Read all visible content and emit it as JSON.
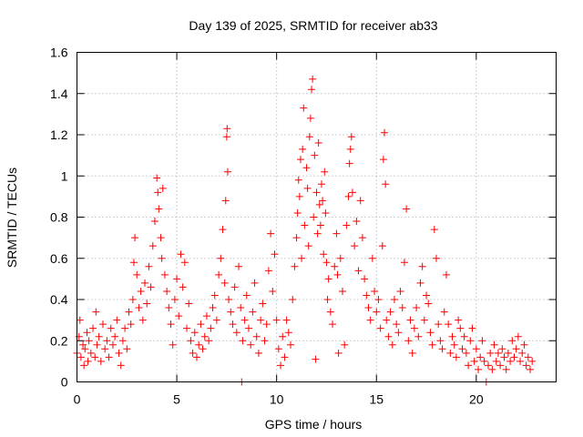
{
  "chart_data": {
    "type": "scatter",
    "title": "Day 139 of 2025, SRMTID for receiver ab33",
    "xlabel": "GPS time / hours",
    "ylabel": "SRMTID / TECUs",
    "xlim": [
      0,
      24
    ],
    "ylim": [
      0,
      1.6
    ],
    "xticks": [
      0,
      5,
      10,
      15,
      20
    ],
    "xtick_labels": [
      "0",
      "5",
      "10",
      "15",
      "20"
    ],
    "yticks": [
      0,
      0.2,
      0.4,
      0.6,
      0.8,
      1.0,
      1.2,
      1.4,
      1.6
    ],
    "ytick_labels": [
      "0",
      "0.2",
      "0.4",
      "0.6",
      "0.8",
      "1",
      "1.2",
      "1.4",
      "1.6"
    ],
    "grid": true,
    "marker": "+",
    "color": "#ff0000",
    "series": [
      {
        "name": "SRMTID",
        "points": [
          [
            0.0,
            0.14
          ],
          [
            0.1,
            0.22
          ],
          [
            0.15,
            0.3
          ],
          [
            0.2,
            0.12
          ],
          [
            0.3,
            0.18
          ],
          [
            0.35,
            0.08
          ],
          [
            0.4,
            0.16
          ],
          [
            0.5,
            0.24
          ],
          [
            0.55,
            0.1
          ],
          [
            0.6,
            0.2
          ],
          [
            0.7,
            0.14
          ],
          [
            0.8,
            0.26
          ],
          [
            0.9,
            0.12
          ],
          [
            0.95,
            0.34
          ],
          [
            1.0,
            0.18
          ],
          [
            1.1,
            0.22
          ],
          [
            1.2,
            0.1
          ],
          [
            1.3,
            0.28
          ],
          [
            1.4,
            0.16
          ],
          [
            1.5,
            0.2
          ],
          [
            1.6,
            0.12
          ],
          [
            1.7,
            0.26
          ],
          [
            1.8,
            0.18
          ],
          [
            1.9,
            0.22
          ],
          [
            2.0,
            0.3
          ],
          [
            2.1,
            0.14
          ],
          [
            2.2,
            0.08
          ],
          [
            2.3,
            0.2
          ],
          [
            2.4,
            0.26
          ],
          [
            2.5,
            0.16
          ],
          [
            2.6,
            0.34
          ],
          [
            2.7,
            0.28
          ],
          [
            2.8,
            0.4
          ],
          [
            2.85,
            0.58
          ],
          [
            2.9,
            0.7
          ],
          [
            3.0,
            0.52
          ],
          [
            3.1,
            0.36
          ],
          [
            3.2,
            0.44
          ],
          [
            3.3,
            0.3
          ],
          [
            3.4,
            0.48
          ],
          [
            3.5,
            0.38
          ],
          [
            3.6,
            0.56
          ],
          [
            3.7,
            0.46
          ],
          [
            3.8,
            0.66
          ],
          [
            3.9,
            0.78
          ],
          [
            4.0,
            0.99
          ],
          [
            4.05,
            0.92
          ],
          [
            4.1,
            0.84
          ],
          [
            4.2,
            0.7
          ],
          [
            4.25,
            0.6
          ],
          [
            4.3,
            0.94
          ],
          [
            4.4,
            0.52
          ],
          [
            4.5,
            0.44
          ],
          [
            4.6,
            0.36
          ],
          [
            4.7,
            0.28
          ],
          [
            4.8,
            0.18
          ],
          [
            4.9,
            0.4
          ],
          [
            5.0,
            0.5
          ],
          [
            5.1,
            0.32
          ],
          [
            5.2,
            0.62
          ],
          [
            5.3,
            0.46
          ],
          [
            5.4,
            0.58
          ],
          [
            5.5,
            0.26
          ],
          [
            5.6,
            0.38
          ],
          [
            5.7,
            0.2
          ],
          [
            5.8,
            0.14
          ],
          [
            5.9,
            0.24
          ],
          [
            6.0,
            0.12
          ],
          [
            6.1,
            0.18
          ],
          [
            6.2,
            0.28
          ],
          [
            6.3,
            0.16
          ],
          [
            6.4,
            0.22
          ],
          [
            6.5,
            0.32
          ],
          [
            6.6,
            0.2
          ],
          [
            6.7,
            0.26
          ],
          [
            6.8,
            0.36
          ],
          [
            6.9,
            0.42
          ],
          [
            7.0,
            0.3
          ],
          [
            7.1,
            0.52
          ],
          [
            7.2,
            0.6
          ],
          [
            7.3,
            0.74
          ],
          [
            7.4,
            0.48
          ],
          [
            7.45,
            0.88
          ],
          [
            7.5,
            1.19
          ],
          [
            7.52,
            1.23
          ],
          [
            7.55,
            1.02
          ],
          [
            7.6,
            0.4
          ],
          [
            7.7,
            0.34
          ],
          [
            7.8,
            0.28
          ],
          [
            7.9,
            0.46
          ],
          [
            8.0,
            0.24
          ],
          [
            8.1,
            0.56
          ],
          [
            8.2,
            0.36
          ],
          [
            8.25,
            0.0
          ],
          [
            8.3,
            0.2
          ],
          [
            8.4,
            0.3
          ],
          [
            8.5,
            0.42
          ],
          [
            8.6,
            0.26
          ],
          [
            8.7,
            0.18
          ],
          [
            8.8,
            0.34
          ],
          [
            8.9,
            0.48
          ],
          [
            9.0,
            0.22
          ],
          [
            9.1,
            0.14
          ],
          [
            9.2,
            0.3
          ],
          [
            9.3,
            0.38
          ],
          [
            9.4,
            0.2
          ],
          [
            9.5,
            0.28
          ],
          [
            9.6,
            0.54
          ],
          [
            9.7,
            0.72
          ],
          [
            9.8,
            0.44
          ],
          [
            9.9,
            0.62
          ],
          [
            10.0,
            0.3
          ],
          [
            10.1,
            0.16
          ],
          [
            10.2,
            0.08
          ],
          [
            10.3,
            0.22
          ],
          [
            10.4,
            0.12
          ],
          [
            10.5,
            0.3
          ],
          [
            10.6,
            0.24
          ],
          [
            10.7,
            0.18
          ],
          [
            10.8,
            0.4
          ],
          [
            10.9,
            0.56
          ],
          [
            11.0,
            0.7
          ],
          [
            11.05,
            0.82
          ],
          [
            11.1,
            0.98
          ],
          [
            11.15,
            0.9
          ],
          [
            11.2,
            1.08
          ],
          [
            11.25,
            0.6
          ],
          [
            11.3,
            1.13
          ],
          [
            11.35,
            1.33
          ],
          [
            11.4,
            0.76
          ],
          [
            11.5,
            1.04
          ],
          [
            11.55,
            0.94
          ],
          [
            11.6,
            0.66
          ],
          [
            11.65,
            1.19
          ],
          [
            11.7,
            1.28
          ],
          [
            11.75,
            1.42
          ],
          [
            11.8,
            1.47
          ],
          [
            11.85,
            0.8
          ],
          [
            11.9,
            1.1
          ],
          [
            11.95,
            0.11
          ],
          [
            12.0,
            0.92
          ],
          [
            12.05,
            0.72
          ],
          [
            12.1,
            1.16
          ],
          [
            12.15,
            0.86
          ],
          [
            12.2,
            0.76
          ],
          [
            12.25,
            0.96
          ],
          [
            12.3,
            0.88
          ],
          [
            12.35,
            0.62
          ],
          [
            12.4,
            1.02
          ],
          [
            12.45,
            0.82
          ],
          [
            12.5,
            0.58
          ],
          [
            12.55,
            0.4
          ],
          [
            12.6,
            0.5
          ],
          [
            12.7,
            0.34
          ],
          [
            12.8,
            0.28
          ],
          [
            12.9,
            0.56
          ],
          [
            13.0,
            0.72
          ],
          [
            13.05,
            0.52
          ],
          [
            13.1,
            0.14
          ],
          [
            13.2,
            0.6
          ],
          [
            13.3,
            0.44
          ],
          [
            13.4,
            0.18
          ],
          [
            13.5,
            0.76
          ],
          [
            13.6,
            0.9
          ],
          [
            13.65,
            1.06
          ],
          [
            13.7,
            1.13
          ],
          [
            13.75,
            1.19
          ],
          [
            13.8,
            0.92
          ],
          [
            13.9,
            0.66
          ],
          [
            14.0,
            0.78
          ],
          [
            14.1,
            0.54
          ],
          [
            14.2,
            0.88
          ],
          [
            14.3,
            0.7
          ],
          [
            14.4,
            0.5
          ],
          [
            14.5,
            0.42
          ],
          [
            14.6,
            0.36
          ],
          [
            14.7,
            0.3
          ],
          [
            14.8,
            0.6
          ],
          [
            14.9,
            0.44
          ],
          [
            15.0,
            0.34
          ],
          [
            15.1,
            0.4
          ],
          [
            15.2,
            0.26
          ],
          [
            15.3,
            0.66
          ],
          [
            15.35,
            1.08
          ],
          [
            15.4,
            1.21
          ],
          [
            15.45,
            0.96
          ],
          [
            15.5,
            0.3
          ],
          [
            15.6,
            0.22
          ],
          [
            15.7,
            0.34
          ],
          [
            15.8,
            0.18
          ],
          [
            15.9,
            0.4
          ],
          [
            16.0,
            0.28
          ],
          [
            16.1,
            0.24
          ],
          [
            16.2,
            0.44
          ],
          [
            16.3,
            0.36
          ],
          [
            16.4,
            0.58
          ],
          [
            16.5,
            0.84
          ],
          [
            16.6,
            0.2
          ],
          [
            16.7,
            0.3
          ],
          [
            16.8,
            0.14
          ],
          [
            16.9,
            0.26
          ],
          [
            17.0,
            0.36
          ],
          [
            17.1,
            0.22
          ],
          [
            17.2,
            0.48
          ],
          [
            17.3,
            0.56
          ],
          [
            17.4,
            0.3
          ],
          [
            17.5,
            0.42
          ],
          [
            17.6,
            0.38
          ],
          [
            17.7,
            0.24
          ],
          [
            17.8,
            0.18
          ],
          [
            17.9,
            0.74
          ],
          [
            18.0,
            0.6
          ],
          [
            18.1,
            0.28
          ],
          [
            18.2,
            0.2
          ],
          [
            18.3,
            0.16
          ],
          [
            18.4,
            0.34
          ],
          [
            18.5,
            0.52
          ],
          [
            18.6,
            0.28
          ],
          [
            18.7,
            0.14
          ],
          [
            18.8,
            0.22
          ],
          [
            18.9,
            0.18
          ],
          [
            19.0,
            0.12
          ],
          [
            19.1,
            0.3
          ],
          [
            19.2,
            0.26
          ],
          [
            19.3,
            0.16
          ],
          [
            19.4,
            0.22
          ],
          [
            19.5,
            0.14
          ],
          [
            19.6,
            0.08
          ],
          [
            19.7,
            0.2
          ],
          [
            19.8,
            0.26
          ],
          [
            19.9,
            0.1
          ],
          [
            20.0,
            0.16
          ],
          [
            20.1,
            0.06
          ],
          [
            20.2,
            0.12
          ],
          [
            20.3,
            0.2
          ],
          [
            20.4,
            0.1
          ],
          [
            20.5,
            0.0
          ],
          [
            20.6,
            0.08
          ],
          [
            20.7,
            0.14
          ],
          [
            20.8,
            0.06
          ],
          [
            20.9,
            0.18
          ],
          [
            21.0,
            0.1
          ],
          [
            21.1,
            0.14
          ],
          [
            21.2,
            0.08
          ],
          [
            21.3,
            0.16
          ],
          [
            21.4,
            0.12
          ],
          [
            21.5,
            0.06
          ],
          [
            21.6,
            0.14
          ],
          [
            21.7,
            0.1
          ],
          [
            21.8,
            0.2
          ],
          [
            21.9,
            0.12
          ],
          [
            22.0,
            0.16
          ],
          [
            22.1,
            0.22
          ],
          [
            22.2,
            0.1
          ],
          [
            22.3,
            0.14
          ],
          [
            22.4,
            0.18
          ],
          [
            22.5,
            0.08
          ],
          [
            22.6,
            0.12
          ],
          [
            22.7,
            0.06
          ],
          [
            22.8,
            0.1
          ]
        ]
      }
    ]
  }
}
